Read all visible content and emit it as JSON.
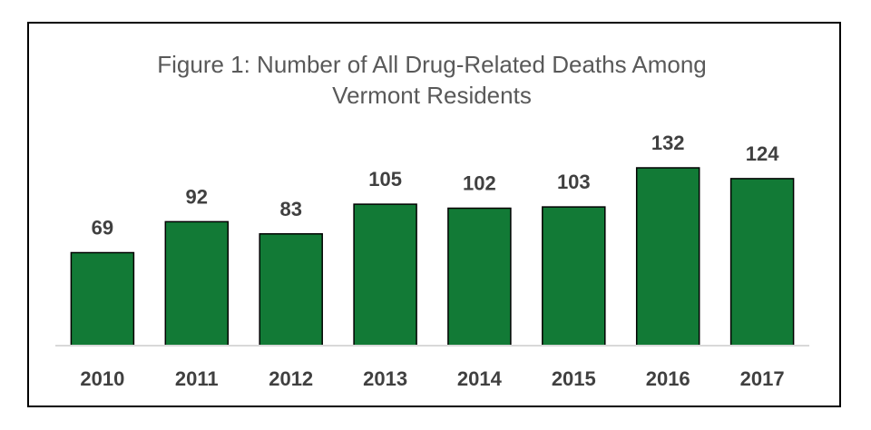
{
  "chart_data": {
    "type": "bar",
    "title_lines": [
      "Figure 1: Number of All Drug-Related Deaths Among",
      "Vermont Residents"
    ],
    "categories": [
      "2010",
      "2011",
      "2012",
      "2013",
      "2014",
      "2015",
      "2016",
      "2017"
    ],
    "values": [
      69,
      92,
      83,
      105,
      102,
      103,
      132,
      124
    ],
    "value_labels": [
      "69",
      "92",
      "83",
      "105",
      "102",
      "103",
      "132",
      "124"
    ],
    "xlabel": "",
    "ylabel": "",
    "ylim": [
      0,
      132
    ],
    "grid": false,
    "legend": "none",
    "colors": {
      "bar_fill": "#127A36",
      "bar_stroke": "#000000",
      "axis": "#D9D9D9",
      "label": "#404040",
      "title": "#595959"
    }
  }
}
